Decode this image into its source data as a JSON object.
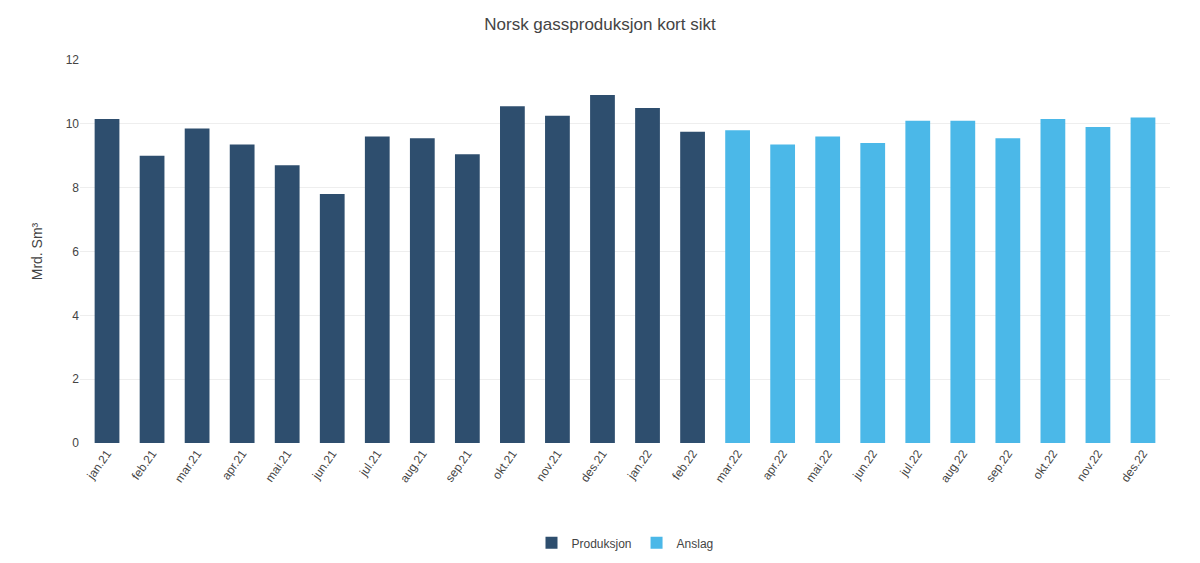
{
  "chart_data": {
    "type": "bar",
    "title": "Norsk gassproduksjon kort sikt",
    "ylabel": "Mrd. Sm³",
    "categories": [
      "jan.21",
      "feb.21",
      "mar.21",
      "apr.21",
      "mai.21",
      "jun.21",
      "jul.21",
      "aug.21",
      "sep.21",
      "okt.21",
      "nov.21",
      "des.21",
      "jan.22",
      "feb.22",
      "mar.22",
      "apr.22",
      "mai.22",
      "jun.22",
      "jul.22",
      "aug.22",
      "sep.22",
      "okt.22",
      "nov.22",
      "des.22"
    ],
    "series": [
      {
        "name": "Produksjon",
        "color": "#2E4E6E",
        "values": [
          10.15,
          9.0,
          9.85,
          9.35,
          8.7,
          7.8,
          9.6,
          9.55,
          9.05,
          10.55,
          10.25,
          10.9,
          10.5,
          9.75,
          null,
          null,
          null,
          null,
          null,
          null,
          null,
          null,
          null,
          null
        ]
      },
      {
        "name": "Anslag",
        "color": "#4BB8E8",
        "values": [
          null,
          null,
          null,
          null,
          null,
          null,
          null,
          null,
          null,
          null,
          null,
          null,
          null,
          null,
          9.8,
          9.35,
          9.6,
          9.4,
          10.1,
          10.1,
          9.55,
          10.15,
          9.9,
          10.2
        ]
      }
    ],
    "ylim": [
      0,
      12
    ],
    "yticks": [
      0,
      2,
      4,
      6,
      8,
      10,
      12
    ],
    "grid": true,
    "legend": "bottom"
  }
}
